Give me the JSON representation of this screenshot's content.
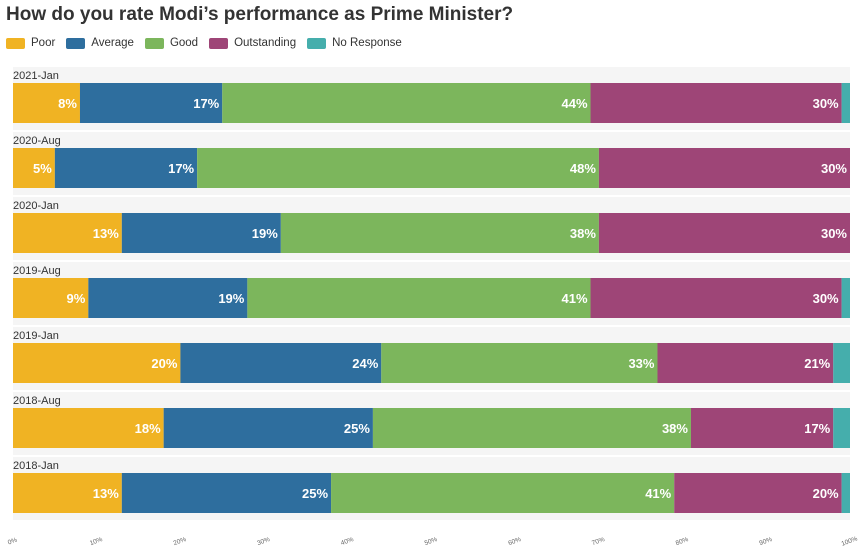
{
  "chart_data": {
    "type": "bar",
    "orientation": "horizontal",
    "stacked": true,
    "title": "How do you rate Modi’s performance as Prime Minister?",
    "legend_position": "top-left",
    "categories": [
      "2021-Jan",
      "2020-Aug",
      "2020-Jan",
      "2019-Aug",
      "2019-Jan",
      "2018-Aug",
      "2018-Jan"
    ],
    "series": [
      {
        "name": "Poor",
        "color": "#f0b323",
        "values": [
          8,
          5,
          13,
          9,
          20,
          18,
          13
        ]
      },
      {
        "name": "Average",
        "color": "#2e6e9e",
        "values": [
          17,
          17,
          19,
          19,
          24,
          25,
          25
        ]
      },
      {
        "name": "Good",
        "color": "#7cb65c",
        "values": [
          44,
          48,
          38,
          41,
          33,
          38,
          41
        ]
      },
      {
        "name": "Outstanding",
        "color": "#9e4577",
        "values": [
          30,
          30,
          30,
          30,
          21,
          17,
          20
        ]
      },
      {
        "name": "No Response",
        "color": "#45aeac",
        "values": [
          1,
          0,
          0,
          1,
          2,
          2,
          1
        ]
      }
    ],
    "x_ticks": [
      "0%",
      "10%",
      "20%",
      "30%",
      "40%",
      "50%",
      "60%",
      "70%",
      "80%",
      "90%",
      "100%"
    ],
    "xlim": [
      0,
      100
    ],
    "grid": false
  }
}
